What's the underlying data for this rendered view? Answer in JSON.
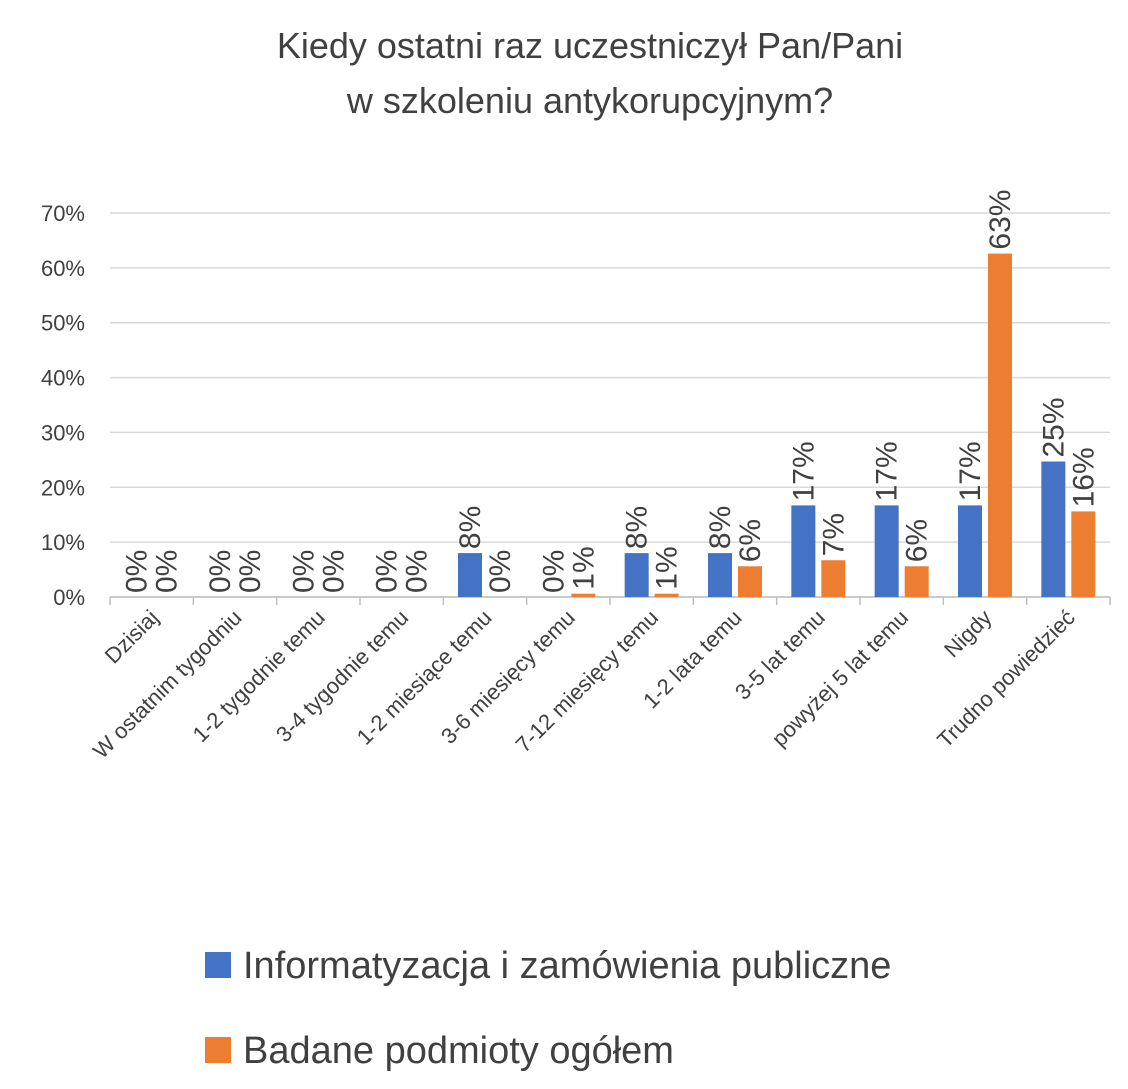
{
  "chart_data": {
    "type": "bar",
    "title": [
      "Kiedy ostatni raz uczestniczył Pan/Pani",
      "w szkoleniu antykorupcyjnym?"
    ],
    "categories": [
      "Dzisiaj",
      "W ostatnim tygodniu",
      "1-2 tygodnie temu",
      "3-4 tygodnie temu",
      "1-2 miesiące temu",
      "3-6 miesięcy temu",
      "7-12 miesięcy temu",
      "1-2 lata temu",
      "3-5 lat temu",
      "powyżej 5 lat temu",
      "Nigdy",
      "Trudno powiedzieć"
    ],
    "series": [
      {
        "name": "Informatyzacja i zamówienia publiczne",
        "color": "#4472c4",
        "values": [
          0,
          0,
          0,
          0,
          8,
          0,
          8,
          8,
          16.7,
          16.7,
          16.7,
          24.7
        ],
        "value_labels": [
          "0%",
          "0%",
          "0%",
          "0%",
          "8%",
          "0%",
          "8%",
          "8%",
          "17%",
          "17%",
          "17%",
          "25%"
        ]
      },
      {
        "name": "Badane podmioty ogółem",
        "color": "#ed7d31",
        "values": [
          0,
          0,
          0,
          0,
          0,
          0.6,
          0.6,
          5.6,
          6.7,
          5.6,
          62.6,
          15.6
        ],
        "value_labels": [
          "0%",
          "0%",
          "0%",
          "0%",
          "0%",
          "1%",
          "1%",
          "6%",
          "7%",
          "6%",
          "63%",
          "16%"
        ]
      }
    ],
    "ylim": [
      0,
      70
    ],
    "yticks": [
      {
        "value": 0,
        "label": "0%"
      },
      {
        "value": 10,
        "label": "10%"
      },
      {
        "value": 20,
        "label": "20%"
      },
      {
        "value": 30,
        "label": "30%"
      },
      {
        "value": 40,
        "label": "40%"
      },
      {
        "value": 50,
        "label": "50%"
      },
      {
        "value": 60,
        "label": "60%"
      },
      {
        "value": 70,
        "label": "70%"
      }
    ],
    "grid": true
  }
}
